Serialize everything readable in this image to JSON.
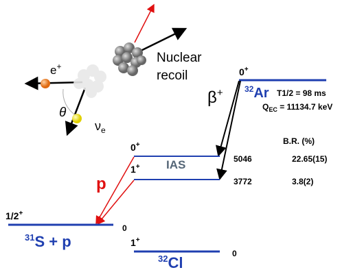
{
  "decay_products": {
    "recoil_label": [
      "Nuclear",
      "recoil"
    ],
    "positron": {
      "base": "e",
      "sup": "+"
    },
    "angle": "θ",
    "neutrino": {
      "base": "ν",
      "sub": "e"
    }
  },
  "decay_mode": {
    "base": "β",
    "sup": "+"
  },
  "parent": {
    "spin": {
      "base": "0",
      "sup": "+"
    },
    "mass": "32",
    "symbol": "Ar",
    "half_life": "T1/2 = 98 ms",
    "q_value": {
      "base": "Q",
      "sub": "EC",
      "rest": " = 11134.7 keV"
    }
  },
  "branching_header": "B.R. (%)",
  "levels": [
    {
      "spin": {
        "base": "0",
        "sup": "+"
      },
      "name": "IAS",
      "energy": "5046",
      "branching": "22.65(15)"
    },
    {
      "spin": {
        "base": "1",
        "sup": "+"
      },
      "energy": "3772",
      "branching": "3.8(2)"
    }
  ],
  "proton_label": "p",
  "final": {
    "spin": {
      "base": "1/2",
      "sup": "+"
    },
    "mass": "31",
    "label": "S + p",
    "energy": "0"
  },
  "daughter": {
    "spin": {
      "base": "1",
      "sup": "+"
    },
    "mass": "32",
    "symbol": "Cl",
    "energy": "0"
  }
}
